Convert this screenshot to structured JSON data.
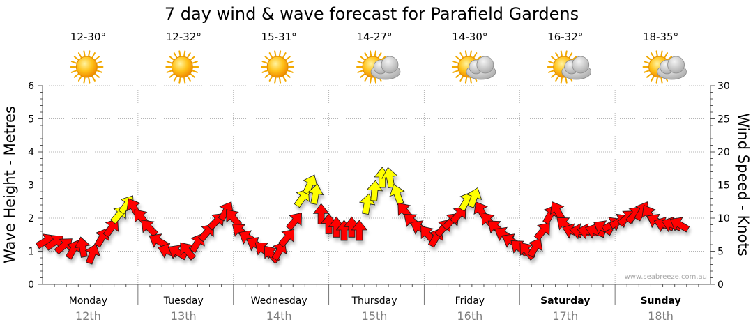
{
  "chart_data": {
    "type": "line",
    "title": "7 day wind & wave forecast for Parafield Gardens",
    "ylabel_left": "Wave Height - Metres",
    "ylabel_right": "Wind Speed - Knots",
    "ylim_left": [
      0,
      6
    ],
    "ylim_right": [
      0,
      30
    ],
    "yticks_left": [
      "0",
      "1",
      "2",
      "3",
      "4",
      "5",
      "6"
    ],
    "yticks_right": [
      "0",
      "5",
      "10",
      "15",
      "20",
      "25",
      "30"
    ],
    "credit": "www.seabreeze.com.au",
    "days": [
      {
        "name": "Monday",
        "date": "12th",
        "temp": "12-30°",
        "weather": "sunny",
        "bold": false
      },
      {
        "name": "Tuesday",
        "date": "13th",
        "temp": "12-32°",
        "weather": "sunny",
        "bold": false
      },
      {
        "name": "Wednesday",
        "date": "14th",
        "temp": "15-31°",
        "weather": "sunny",
        "bold": false
      },
      {
        "name": "Thursday",
        "date": "15th",
        "temp": "14-27°",
        "weather": "partly-cloudy",
        "bold": false
      },
      {
        "name": "Friday",
        "date": "16th",
        "temp": "14-30°",
        "weather": "partly-cloudy",
        "bold": false
      },
      {
        "name": "Saturday",
        "date": "17th",
        "temp": "16-32°",
        "weather": "partly-cloudy",
        "bold": true
      },
      {
        "name": "Sunday",
        "date": "18th",
        "temp": "18-35°",
        "weather": "partly-cloudy",
        "bold": true
      }
    ],
    "series": [
      {
        "name": "Wind Speed (knots) — arrows, yellow when strong",
        "axis": "right",
        "x_unit": "days from start",
        "points": [
          {
            "t": 0.03,
            "v": 6.5,
            "dir": 60,
            "color": "red"
          },
          {
            "t": 0.12,
            "v": 6.3,
            "dir": 55,
            "color": "red"
          },
          {
            "t": 0.22,
            "v": 5.8,
            "dir": 50,
            "color": "red"
          },
          {
            "t": 0.32,
            "v": 5.2,
            "dir": 30,
            "color": "red"
          },
          {
            "t": 0.42,
            "v": 5.5,
            "dir": 350,
            "color": "red"
          },
          {
            "t": 0.52,
            "v": 4.5,
            "dir": 20,
            "color": "red"
          },
          {
            "t": 0.62,
            "v": 7.0,
            "dir": 30,
            "color": "red"
          },
          {
            "t": 0.72,
            "v": 8.5,
            "dir": 35,
            "color": "red"
          },
          {
            "t": 0.8,
            "v": 10.5,
            "dir": 40,
            "color": "yellow"
          },
          {
            "t": 0.88,
            "v": 12.0,
            "dir": 35,
            "color": "yellow"
          },
          {
            "t": 0.96,
            "v": 11.5,
            "dir": 330,
            "color": "red"
          },
          {
            "t": 1.04,
            "v": 10.0,
            "dir": 320,
            "color": "red"
          },
          {
            "t": 1.12,
            "v": 8.5,
            "dir": 315,
            "color": "red"
          },
          {
            "t": 1.22,
            "v": 6.5,
            "dir": 300,
            "color": "red"
          },
          {
            "t": 1.32,
            "v": 5.0,
            "dir": 290,
            "color": "red"
          },
          {
            "t": 1.42,
            "v": 4.8,
            "dir": 300,
            "color": "red"
          },
          {
            "t": 1.52,
            "v": 5.0,
            "dir": 320,
            "color": "red"
          },
          {
            "t": 1.62,
            "v": 6.2,
            "dir": 30,
            "color": "red"
          },
          {
            "t": 1.72,
            "v": 7.8,
            "dir": 40,
            "color": "red"
          },
          {
            "t": 1.82,
            "v": 9.5,
            "dir": 45,
            "color": "red"
          },
          {
            "t": 1.92,
            "v": 11.0,
            "dir": 30,
            "color": "red"
          },
          {
            "t": 2.0,
            "v": 10.0,
            "dir": 320,
            "color": "red"
          },
          {
            "t": 2.08,
            "v": 8.0,
            "dir": 310,
            "color": "red"
          },
          {
            "t": 2.16,
            "v": 7.0,
            "dir": 300,
            "color": "red"
          },
          {
            "t": 2.24,
            "v": 6.0,
            "dir": 300,
            "color": "red"
          },
          {
            "t": 2.32,
            "v": 5.2,
            "dir": 310,
            "color": "red"
          },
          {
            "t": 2.4,
            "v": 4.5,
            "dir": 320,
            "color": "red"
          },
          {
            "t": 2.48,
            "v": 5.0,
            "dir": 30,
            "color": "red"
          },
          {
            "t": 2.56,
            "v": 7.0,
            "dir": 40,
            "color": "red"
          },
          {
            "t": 2.64,
            "v": 9.5,
            "dir": 40,
            "color": "red"
          },
          {
            "t": 2.72,
            "v": 13.0,
            "dir": 35,
            "color": "yellow"
          },
          {
            "t": 2.8,
            "v": 15.0,
            "dir": 25,
            "color": "yellow"
          },
          {
            "t": 2.86,
            "v": 13.5,
            "dir": 10,
            "color": "yellow"
          },
          {
            "t": 2.92,
            "v": 10.5,
            "dir": 0,
            "color": "red"
          },
          {
            "t": 3.0,
            "v": 9.0,
            "dir": 0,
            "color": "red"
          },
          {
            "t": 3.08,
            "v": 8.5,
            "dir": 0,
            "color": "red"
          },
          {
            "t": 3.16,
            "v": 8.0,
            "dir": 0,
            "color": "red"
          },
          {
            "t": 3.24,
            "v": 8.5,
            "dir": 0,
            "color": "red"
          },
          {
            "t": 3.32,
            "v": 8.0,
            "dir": 0,
            "color": "red"
          },
          {
            "t": 3.4,
            "v": 12.0,
            "dir": 10,
            "color": "yellow"
          },
          {
            "t": 3.48,
            "v": 14.0,
            "dir": 5,
            "color": "yellow"
          },
          {
            "t": 3.56,
            "v": 16.0,
            "dir": 0,
            "color": "yellow"
          },
          {
            "t": 3.64,
            "v": 16.0,
            "dir": 350,
            "color": "yellow"
          },
          {
            "t": 3.72,
            "v": 13.5,
            "dir": 340,
            "color": "yellow"
          },
          {
            "t": 3.8,
            "v": 11.0,
            "dir": 320,
            "color": "red"
          },
          {
            "t": 3.88,
            "v": 9.5,
            "dir": 310,
            "color": "red"
          },
          {
            "t": 3.96,
            "v": 8.5,
            "dir": 300,
            "color": "red"
          },
          {
            "t": 4.04,
            "v": 7.5,
            "dir": 320,
            "color": "red"
          },
          {
            "t": 4.12,
            "v": 7.0,
            "dir": 30,
            "color": "red"
          },
          {
            "t": 4.2,
            "v": 8.5,
            "dir": 40,
            "color": "red"
          },
          {
            "t": 4.28,
            "v": 9.5,
            "dir": 45,
            "color": "red"
          },
          {
            "t": 4.36,
            "v": 10.5,
            "dir": 40,
            "color": "red"
          },
          {
            "t": 4.44,
            "v": 12.5,
            "dir": 30,
            "color": "yellow"
          },
          {
            "t": 4.52,
            "v": 13.0,
            "dir": 20,
            "color": "yellow"
          },
          {
            "t": 4.6,
            "v": 11.0,
            "dir": 330,
            "color": "red"
          },
          {
            "t": 4.68,
            "v": 9.5,
            "dir": 320,
            "color": "red"
          },
          {
            "t": 4.76,
            "v": 8.5,
            "dir": 310,
            "color": "red"
          },
          {
            "t": 4.84,
            "v": 7.5,
            "dir": 300,
            "color": "red"
          },
          {
            "t": 4.92,
            "v": 6.5,
            "dir": 300,
            "color": "red"
          },
          {
            "t": 5.0,
            "v": 5.5,
            "dir": 310,
            "color": "red"
          },
          {
            "t": 5.08,
            "v": 5.0,
            "dir": 320,
            "color": "red"
          },
          {
            "t": 5.16,
            "v": 5.5,
            "dir": 30,
            "color": "red"
          },
          {
            "t": 5.24,
            "v": 8.0,
            "dir": 40,
            "color": "red"
          },
          {
            "t": 5.32,
            "v": 10.5,
            "dir": 30,
            "color": "red"
          },
          {
            "t": 5.4,
            "v": 11.0,
            "dir": 330,
            "color": "red"
          },
          {
            "t": 5.48,
            "v": 9.0,
            "dir": 310,
            "color": "red"
          },
          {
            "t": 5.56,
            "v": 8.0,
            "dir": 290,
            "color": "red"
          },
          {
            "t": 5.64,
            "v": 8.0,
            "dir": 280,
            "color": "red"
          },
          {
            "t": 5.72,
            "v": 8.0,
            "dir": 280,
            "color": "red"
          },
          {
            "t": 5.8,
            "v": 8.0,
            "dir": 290,
            "color": "red"
          },
          {
            "t": 5.88,
            "v": 8.5,
            "dir": 300,
            "color": "red"
          },
          {
            "t": 5.96,
            "v": 9.0,
            "dir": 60,
            "color": "red"
          },
          {
            "t": 6.04,
            "v": 9.5,
            "dir": 60,
            "color": "red"
          },
          {
            "t": 6.12,
            "v": 10.0,
            "dir": 50,
            "color": "red"
          },
          {
            "t": 6.2,
            "v": 10.5,
            "dir": 40,
            "color": "red"
          },
          {
            "t": 6.28,
            "v": 11.0,
            "dir": 30,
            "color": "red"
          },
          {
            "t": 6.36,
            "v": 10.5,
            "dir": 330,
            "color": "red"
          },
          {
            "t": 6.44,
            "v": 9.5,
            "dir": 300,
            "color": "red"
          },
          {
            "t": 6.52,
            "v": 9.0,
            "dir": 290,
            "color": "red"
          },
          {
            "t": 6.6,
            "v": 9.0,
            "dir": 290,
            "color": "red"
          },
          {
            "t": 6.68,
            "v": 9.0,
            "dir": 300,
            "color": "red"
          }
        ]
      }
    ]
  },
  "colors": {
    "arrow_red": "#ff0000",
    "arrow_yellow": "#ffff00",
    "grid": "#b4b4b4",
    "date_grey": "#7f7f7f"
  }
}
